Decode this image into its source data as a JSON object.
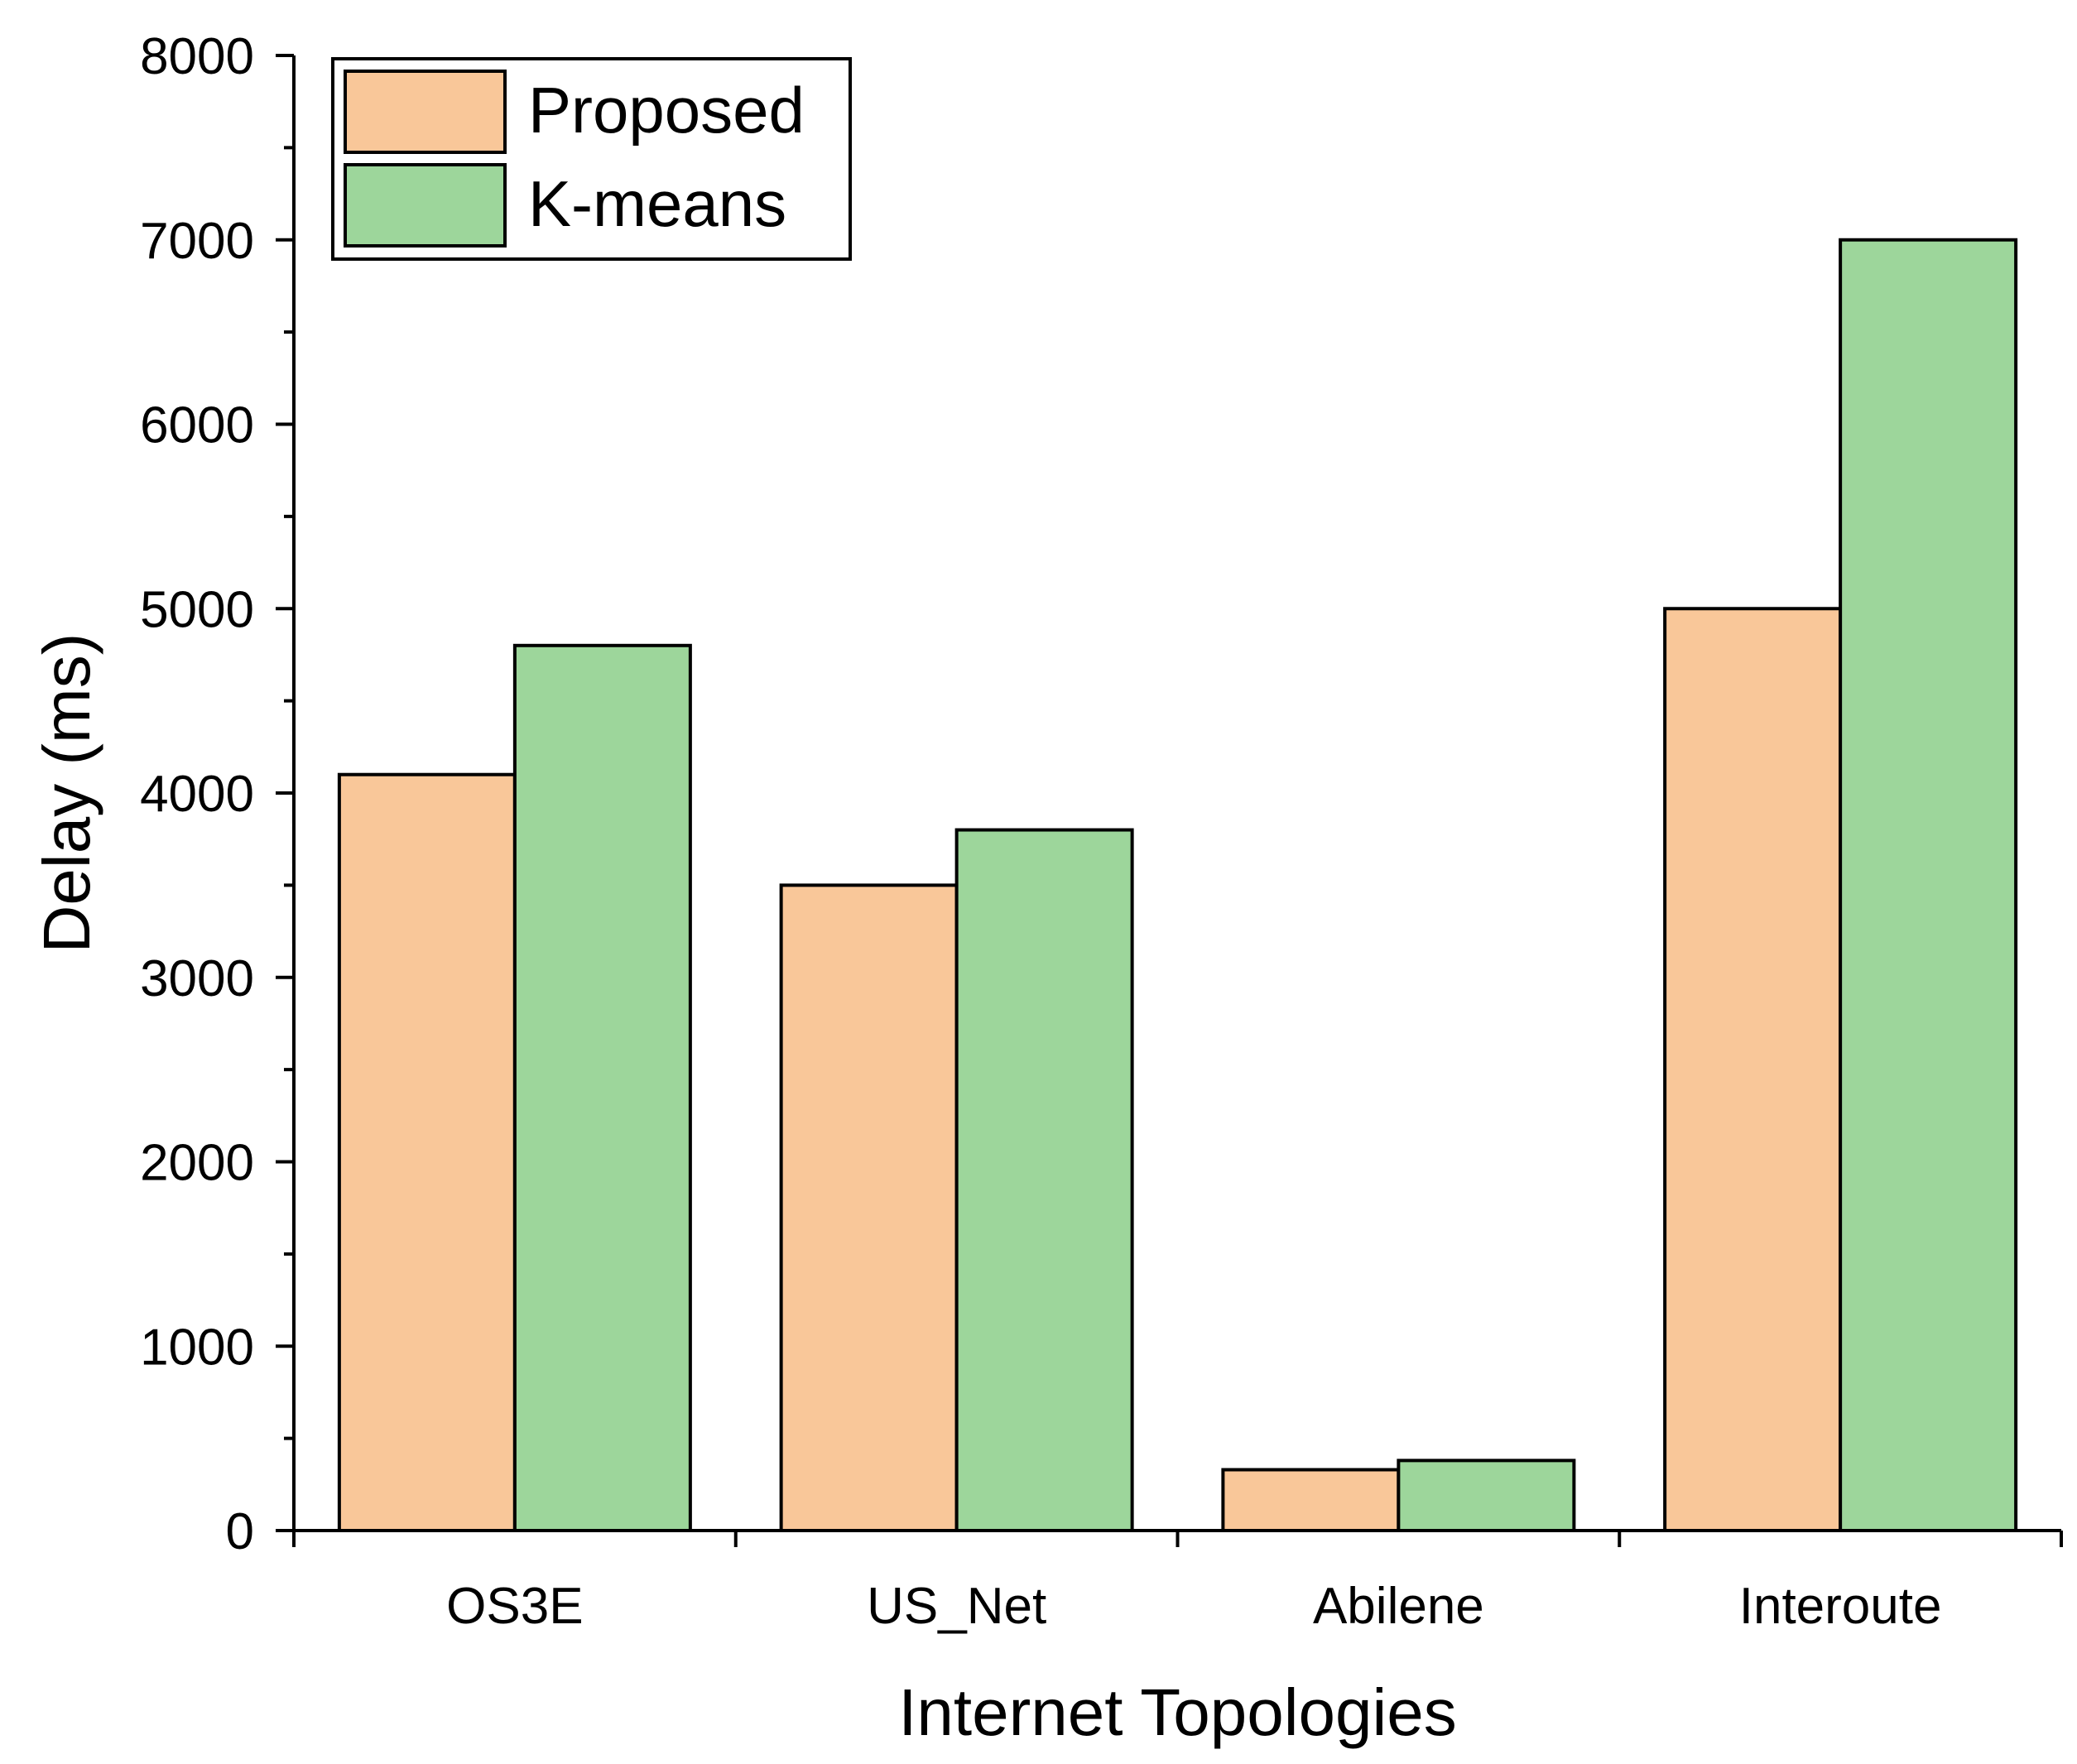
{
  "chart_data": {
    "type": "bar",
    "title": "",
    "xlabel": "Internet Topologies",
    "ylabel": "Delay (ms)",
    "categories": [
      "OS3E",
      "US_Net",
      "Abilene",
      "Interoute"
    ],
    "series": [
      {
        "name": "Proposed",
        "values": [
          4100,
          3500,
          330,
          5000
        ],
        "color": "#F9C799"
      },
      {
        "name": "K-means",
        "values": [
          4800,
          3800,
          380,
          7000
        ],
        "color": "#9DD69B"
      }
    ],
    "ylim": [
      0,
      8000
    ],
    "yticks": [
      0,
      1000,
      2000,
      3000,
      4000,
      5000,
      6000,
      7000,
      8000
    ],
    "grid": false,
    "legend_position": "top-left"
  }
}
